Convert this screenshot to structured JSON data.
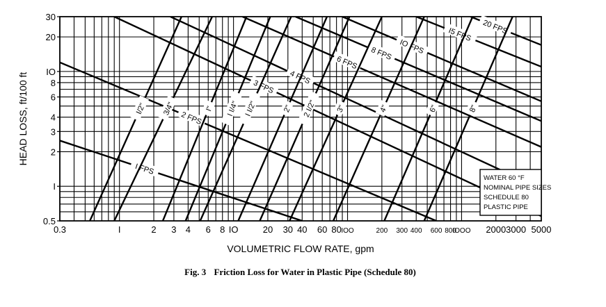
{
  "chart_data": {
    "type": "line",
    "title": "",
    "xlabel": "VOLUMETRIC FLOW RATE, gpm",
    "ylabel": "HEAD LOSS, ft/100 ft",
    "x_scale": "log",
    "y_scale": "log",
    "xlim": [
      0.3,
      5000
    ],
    "ylim": [
      0.5,
      30
    ],
    "grid": true,
    "x_tick_labels": [
      {
        "v": 0.3,
        "t": "0.3"
      },
      {
        "v": 1,
        "t": "I"
      },
      {
        "v": 2,
        "t": "2"
      },
      {
        "v": 3,
        "t": "3"
      },
      {
        "v": 4,
        "t": "4"
      },
      {
        "v": 6,
        "t": "6"
      },
      {
        "v": 8,
        "t": "8"
      },
      {
        "v": 10,
        "t": "IO"
      },
      {
        "v": 20,
        "t": "20"
      },
      {
        "v": 30,
        "t": "30"
      },
      {
        "v": 40,
        "t": "40"
      },
      {
        "v": 60,
        "t": "60"
      },
      {
        "v": 80,
        "t": "80"
      },
      {
        "v": 100,
        "t": "IOO"
      },
      {
        "v": 200,
        "t": "200"
      },
      {
        "v": 300,
        "t": "300"
      },
      {
        "v": 400,
        "t": "400"
      },
      {
        "v": 600,
        "t": "600"
      },
      {
        "v": 800,
        "t": "800"
      },
      {
        "v": 1000,
        "t": "IOOO"
      },
      {
        "v": 2000,
        "t": "2000"
      },
      {
        "v": 3000,
        "t": "3000"
      },
      {
        "v": 5000,
        "t": "5000"
      }
    ],
    "y_tick_labels": [
      {
        "v": 0.5,
        "t": "0.5"
      },
      {
        "v": 1,
        "t": "I"
      },
      {
        "v": 2,
        "t": "2"
      },
      {
        "v": 3,
        "t": "3"
      },
      {
        "v": 4,
        "t": "4"
      },
      {
        "v": 6,
        "t": "6"
      },
      {
        "v": 8,
        "t": "8"
      },
      {
        "v": 10,
        "t": "IO"
      },
      {
        "v": 20,
        "t": "20"
      },
      {
        "v": 30,
        "t": "30"
      }
    ],
    "velocity_lines": [
      {
        "name": "I FPS",
        "points": [
          [
            0.3,
            2.5
          ],
          [
            40,
            0.5
          ]
        ]
      },
      {
        "name": "2 FPS",
        "points": [
          [
            0.3,
            12
          ],
          [
            600,
            0.5
          ]
        ]
      },
      {
        "name": "3 FPS",
        "points": [
          [
            0.9,
            30
          ],
          [
            5000,
            0.55
          ]
        ]
      },
      {
        "name": "4 FPS",
        "points": [
          [
            2.8,
            30
          ],
          [
            5000,
            0.95
          ]
        ]
      },
      {
        "name": "6 FPS",
        "points": [
          [
            12,
            30
          ],
          [
            5000,
            2.2
          ]
        ]
      },
      {
        "name": "8 FPS",
        "points": [
          [
            35,
            30
          ],
          [
            5000,
            3.7
          ]
        ]
      },
      {
        "name": "IO FPS",
        "points": [
          [
            90,
            30
          ],
          [
            5000,
            5.5
          ]
        ]
      },
      {
        "name": "I5 FPS",
        "points": [
          [
            400,
            30
          ],
          [
            5000,
            11
          ]
        ]
      },
      {
        "name": "20 FPS",
        "points": [
          [
            1200,
            30
          ],
          [
            5000,
            17
          ]
        ]
      }
    ],
    "pipe_lines": [
      {
        "name": "I/2\"",
        "points": [
          [
            0.55,
            0.5
          ],
          [
            3.5,
            30
          ]
        ]
      },
      {
        "name": "3/4\"",
        "points": [
          [
            0.9,
            0.5
          ],
          [
            6.5,
            30
          ]
        ]
      },
      {
        "name": "I\"",
        "points": [
          [
            2.4,
            0.5
          ],
          [
            13,
            30
          ]
        ]
      },
      {
        "name": "I I/4\"",
        "points": [
          [
            3.8,
            0.5
          ],
          [
            21,
            30
          ]
        ]
      },
      {
        "name": "I I/2\"",
        "points": [
          [
            5.1,
            0.5
          ],
          [
            32,
            30
          ]
        ]
      },
      {
        "name": "2\"",
        "points": [
          [
            11,
            0.5
          ],
          [
            66,
            30
          ]
        ]
      },
      {
        "name": "2 I/2\"",
        "points": [
          [
            17,
            0.5
          ],
          [
            104,
            30
          ]
        ]
      },
      {
        "name": "3\"",
        "points": [
          [
            31,
            0.5
          ],
          [
            200,
            30
          ]
        ]
      },
      {
        "name": "4\"",
        "points": [
          [
            75,
            0.5
          ],
          [
            470,
            30
          ]
        ]
      },
      {
        "name": "6\"",
        "points": [
          [
            210,
            0.5
          ],
          [
            1250,
            30
          ]
        ]
      },
      {
        "name": "8\"",
        "points": [
          [
            470,
            0.5
          ],
          [
            2800,
            30
          ]
        ]
      }
    ],
    "annotations": [
      "WATER 60 °F",
      "NOMINAL PIPE SIZES",
      "SCHEDULE 80",
      "PLASTIC PIPE"
    ]
  },
  "caption": {
    "label": "Fig. 3",
    "text": "Friction Loss for Water in Plastic Pipe (Schedule 80)"
  }
}
